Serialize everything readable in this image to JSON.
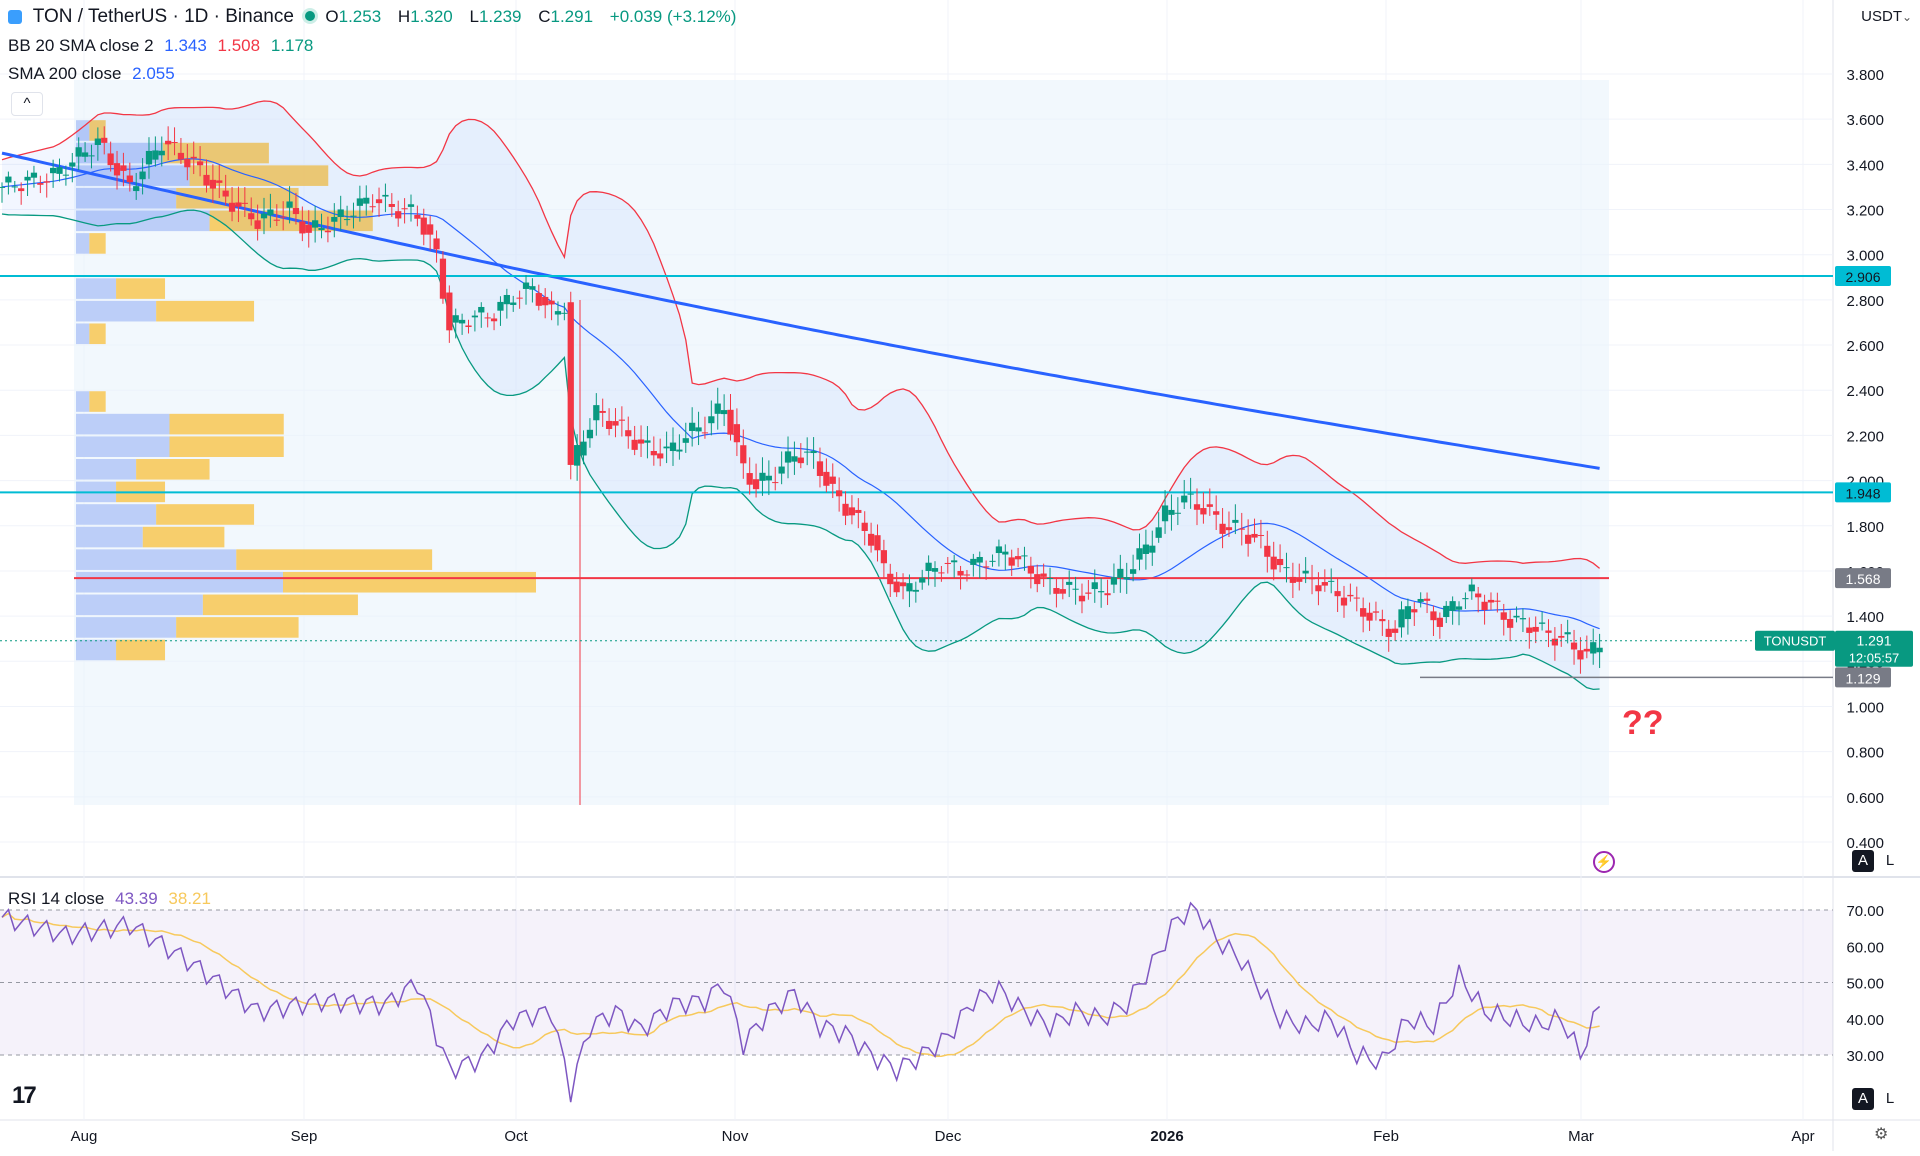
{
  "header": {
    "symbol": "TON / TetherUS · 1D · Binance",
    "o_label": "O",
    "o": "1.253",
    "h_label": "H",
    "h": "1.320",
    "l_label": "L",
    "l": "1.239",
    "c_label": "C",
    "c": "1.291",
    "change": "+0.039 (+3.12%)",
    "currency": "USDT"
  },
  "indicators": {
    "bb": {
      "label": "BB 20 SMA close 2",
      "basis": "1.343",
      "upper": "1.508",
      "lower": "1.178"
    },
    "sma": {
      "label": "SMA 200 close",
      "value": "2.055"
    },
    "rsi": {
      "label": "RSI 14 close",
      "value": "43.39",
      "ma": "38.21"
    }
  },
  "annotation": "??",
  "buttons": {
    "collapse": "^",
    "auto": "A",
    "log": "L",
    "auto2": "A",
    "log2": "L"
  },
  "colors": {
    "bull": "#089981",
    "bear": "#f23645",
    "sma200": "#2962ff",
    "bb_basis": "#2962ff",
    "bb_upper": "#f23645",
    "bb_lower": "#089981",
    "level": "#00bcd4",
    "rsi": "#7e57c2",
    "rsi_ma": "#f7c95c"
  },
  "chart_data": [
    {
      "type": "candlestick",
      "title": "TON / TetherUS · 1D · Binance",
      "x_ticks": [
        "Aug",
        "Sep",
        "Oct",
        "Nov",
        "Dec",
        "2026",
        "Feb",
        "Mar",
        "Apr"
      ],
      "y_ticks": [
        "3.800",
        "3.600",
        "3.400",
        "3.200",
        "3.000",
        "2.800",
        "2.600",
        "2.400",
        "2.200",
        "2.000",
        "1.800",
        "1.600",
        "1.400",
        "1.200",
        "1.000",
        "0.800",
        "0.600",
        "0.400"
      ],
      "ylim": [
        0.4,
        3.8
      ],
      "close_key_points": [
        [
          0,
          3.3
        ],
        [
          8,
          3.35
        ],
        [
          15,
          3.5
        ],
        [
          20,
          3.3
        ],
        [
          25,
          3.5
        ],
        [
          30,
          3.4
        ],
        [
          35,
          3.25
        ],
        [
          40,
          3.15
        ],
        [
          45,
          3.2
        ],
        [
          48,
          3.1
        ],
        [
          52,
          3.15
        ],
        [
          55,
          3.2
        ],
        [
          58,
          3.25
        ],
        [
          62,
          3.2
        ],
        [
          65,
          3.18
        ],
        [
          68,
          3.0
        ],
        [
          70,
          2.68
        ],
        [
          73,
          2.72
        ],
        [
          77,
          2.74
        ],
        [
          80,
          2.82
        ],
        [
          83,
          2.85
        ],
        [
          86,
          2.74
        ],
        [
          88,
          2.78
        ],
        [
          89,
          2.05
        ],
        [
          91,
          2.2
        ],
        [
          93,
          2.3
        ],
        [
          96,
          2.25
        ],
        [
          100,
          2.15
        ],
        [
          104,
          2.12
        ],
        [
          107,
          2.2
        ],
        [
          110,
          2.25
        ],
        [
          113,
          2.33
        ],
        [
          116,
          2.05
        ],
        [
          118,
          1.98
        ],
        [
          121,
          2.03
        ],
        [
          124,
          2.12
        ],
        [
          127,
          2.1
        ],
        [
          130,
          1.95
        ],
        [
          133,
          1.85
        ],
        [
          136,
          1.75
        ],
        [
          138,
          1.6
        ],
        [
          141,
          1.5
        ],
        [
          144,
          1.58
        ],
        [
          147,
          1.63
        ],
        [
          150,
          1.6
        ],
        [
          154,
          1.65
        ],
        [
          157,
          1.68
        ],
        [
          160,
          1.63
        ],
        [
          163,
          1.55
        ],
        [
          166,
          1.52
        ],
        [
          170,
          1.5
        ],
        [
          173,
          1.53
        ],
        [
          176,
          1.6
        ],
        [
          179,
          1.7
        ],
        [
          182,
          1.85
        ],
        [
          185,
          1.92
        ],
        [
          188,
          1.88
        ],
        [
          191,
          1.8
        ],
        [
          194,
          1.78
        ],
        [
          197,
          1.72
        ],
        [
          200,
          1.6
        ],
        [
          203,
          1.57
        ],
        [
          206,
          1.55
        ],
        [
          209,
          1.5
        ],
        [
          212,
          1.45
        ],
        [
          215,
          1.38
        ],
        [
          218,
          1.33
        ],
        [
          220,
          1.45
        ],
        [
          222,
          1.46
        ],
        [
          225,
          1.38
        ],
        [
          228,
          1.48
        ],
        [
          230,
          1.5
        ],
        [
          233,
          1.45
        ],
        [
          236,
          1.38
        ],
        [
          239,
          1.36
        ],
        [
          242,
          1.32
        ],
        [
          245,
          1.29
        ],
        [
          248,
          1.22
        ],
        [
          250,
          1.291
        ]
      ],
      "series": [
        {
          "name": "SMA 200 close",
          "value": 2.055
        },
        {
          "name": "BB 20 SMA close 2",
          "basis": 1.343,
          "upper": 1.508,
          "lower": 1.178
        }
      ],
      "horizontal_levels": [
        {
          "value": 2.906,
          "label": "2.906",
          "color": "#00bcd4"
        },
        {
          "value": 1.948,
          "label": "1.948",
          "color": "#00bcd4"
        },
        {
          "value": 1.568,
          "label": "1.568",
          "color": "#f23645"
        },
        {
          "value": 1.129,
          "label": "1.129",
          "color": "#787b86"
        }
      ],
      "last_price": {
        "symbol": "TONUSDT",
        "value": "1.291",
        "countdown": "12:05:57"
      },
      "volume_profile_max_price": 1.568
    },
    {
      "type": "line",
      "title": "RSI 14 close",
      "y_ticks": [
        "70.00",
        "60.00",
        "50.00",
        "40.00",
        "30.00"
      ],
      "ylim": [
        25,
        75
      ],
      "bands": [
        30,
        70
      ],
      "rsi_key_points": [
        [
          0,
          68
        ],
        [
          10,
          63
        ],
        [
          20,
          66
        ],
        [
          30,
          55
        ],
        [
          40,
          42
        ],
        [
          50,
          45
        ],
        [
          60,
          44
        ],
        [
          65,
          50
        ],
        [
          70,
          26
        ],
        [
          75,
          29
        ],
        [
          80,
          40
        ],
        [
          86,
          42
        ],
        [
          89,
          20
        ],
        [
          92,
          38
        ],
        [
          96,
          42
        ],
        [
          100,
          37
        ],
        [
          105,
          44
        ],
        [
          110,
          45
        ],
        [
          113,
          50
        ],
        [
          116,
          33
        ],
        [
          120,
          42
        ],
        [
          124,
          47
        ],
        [
          128,
          38
        ],
        [
          132,
          36
        ],
        [
          136,
          30
        ],
        [
          140,
          26
        ],
        [
          144,
          30
        ],
        [
          148,
          35
        ],
        [
          152,
          45
        ],
        [
          156,
          48
        ],
        [
          160,
          42
        ],
        [
          164,
          38
        ],
        [
          168,
          42
        ],
        [
          172,
          40
        ],
        [
          176,
          44
        ],
        [
          180,
          55
        ],
        [
          184,
          68
        ],
        [
          187,
          70
        ],
        [
          190,
          62
        ],
        [
          194,
          56
        ],
        [
          197,
          48
        ],
        [
          200,
          40
        ],
        [
          204,
          38
        ],
        [
          208,
          40
        ],
        [
          212,
          30
        ],
        [
          216,
          28
        ],
        [
          220,
          40
        ],
        [
          224,
          38
        ],
        [
          228,
          52
        ],
        [
          232,
          42
        ],
        [
          236,
          40
        ],
        [
          240,
          38
        ],
        [
          244,
          40
        ],
        [
          247,
          30
        ],
        [
          250,
          43.39
        ]
      ],
      "latest": {
        "rsi": 43.39,
        "ma": 38.21
      }
    }
  ],
  "x_axis_labels": [
    "Aug",
    "Sep",
    "Oct",
    "Nov",
    "Dec",
    "2026",
    "Feb",
    "Mar",
    "Apr"
  ]
}
